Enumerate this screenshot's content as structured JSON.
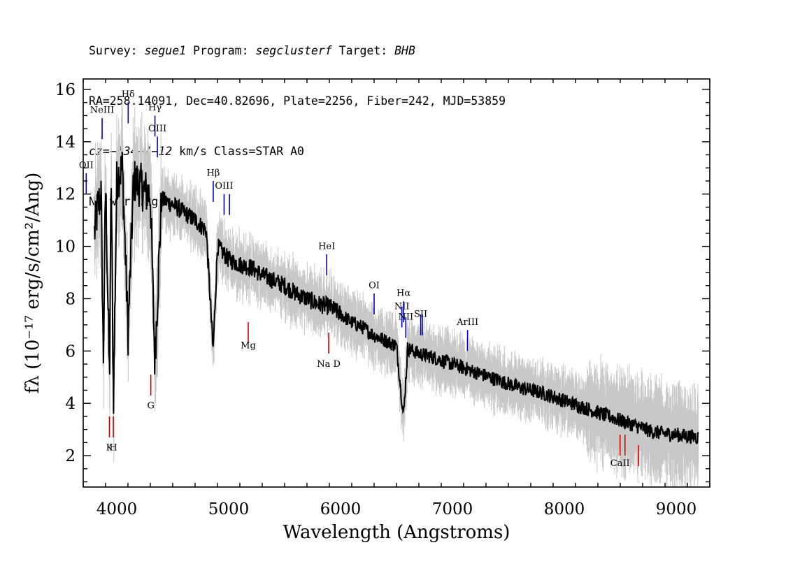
{
  "header": {
    "survey_label": "Survey: ",
    "survey": "segue1",
    "program_label": " Program: ",
    "program": "segclusterf",
    "target_label": " Target: ",
    "target": "BHB",
    "coords": "RA=258.14091, Dec=40.82696, Plate=2256, Fiber=242, MJD=53859",
    "cz_prefix": "cz=",
    "cz": "−134+/−12",
    "cz_suffix": " km/s Class=STAR A0",
    "warnings": "No warnings."
  },
  "chart_data": {
    "type": "line",
    "xlabel": "Wavelength (Angstroms)",
    "ylabel": "fλ (10⁻¹⁷ erg/s/cm²/Ang)",
    "xlim": [
      3700,
      9300
    ],
    "ylim": [
      0.8,
      16.4
    ],
    "x_ticks": [
      4000,
      5000,
      6000,
      7000,
      8000,
      9000
    ],
    "y_ticks": [
      2,
      4,
      6,
      8,
      10,
      12,
      14,
      16
    ],
    "grid": false,
    "colors": {
      "spectrum": "#000000",
      "noise": "#c8c8c8",
      "emission": "#0000cc",
      "absorption": "#cc0000"
    },
    "series": [
      {
        "x": [
          3800,
          3830,
          3860,
          3880,
          3900,
          3935,
          3950,
          3970,
          4000,
          4050,
          4101,
          4150,
          4200,
          4250,
          4300,
          4340,
          4400,
          4500,
          4600,
          4700,
          4800,
          4861,
          4900,
          5000,
          5100,
          5200,
          5300,
          5400,
          5500,
          5600,
          5700,
          5800,
          5900,
          6000,
          6100,
          6200,
          6300,
          6400,
          6500,
          6563,
          6600,
          6700,
          6800,
          7000,
          7200,
          7400,
          7600,
          7800,
          8000,
          8200,
          8400,
          8600,
          8800,
          9000,
          9200
        ],
        "y": [
          10.5,
          11.5,
          12.0,
          5.6,
          12.5,
          4.8,
          12.8,
          3.9,
          12.6,
          13.0,
          6.7,
          12.5,
          12.4,
          12.1,
          12.0,
          5.6,
          11.8,
          11.6,
          11.3,
          11.0,
          10.6,
          6.0,
          10.0,
          9.5,
          9.3,
          9.2,
          8.9,
          8.7,
          8.5,
          8.2,
          8.0,
          7.8,
          7.7,
          7.4,
          7.1,
          6.9,
          6.6,
          6.4,
          6.2,
          3.5,
          6.1,
          5.9,
          5.8,
          5.5,
          5.2,
          4.9,
          4.6,
          4.4,
          4.1,
          3.8,
          3.5,
          3.2,
          2.9,
          2.8,
          2.7
        ]
      }
    ],
    "lines": [
      {
        "label": "OII",
        "wave": 3727,
        "kind": "emission",
        "y1": 12.0,
        "y2": 12.8,
        "ly": 13.0
      },
      {
        "label": "NeIII",
        "wave": 3869,
        "kind": "emission",
        "y1": 14.1,
        "y2": 14.9,
        "ly": 15.1
      },
      {
        "label": "Hδ",
        "wave": 4102,
        "kind": "emission",
        "y1": 14.7,
        "y2": 15.5,
        "ly": 15.7
      },
      {
        "label": "Hγ",
        "wave": 4341,
        "kind": "emission",
        "y1": 14.2,
        "y2": 15.0,
        "ly": 15.2
      },
      {
        "label": "OIII",
        "wave": 4363,
        "kind": "emission",
        "y1": 13.4,
        "y2": 14.2,
        "ly": 14.4
      },
      {
        "label": "Hβ",
        "wave": 4862,
        "kind": "emission",
        "y1": 11.7,
        "y2": 12.5,
        "ly": 12.7
      },
      {
        "label": "OIII",
        "wave": 4959,
        "kind": "emission",
        "y1": 11.2,
        "y2": 12.0,
        "ly": 12.2
      },
      {
        "label": "",
        "wave": 5007,
        "kind": "emission",
        "y1": 11.2,
        "y2": 12.0,
        "ly": 12.2
      },
      {
        "label": "HeI",
        "wave": 5876,
        "kind": "emission",
        "y1": 8.9,
        "y2": 9.7,
        "ly": 9.9
      },
      {
        "label": "OI",
        "wave": 6300,
        "kind": "emission",
        "y1": 7.4,
        "y2": 8.2,
        "ly": 8.4
      },
      {
        "label": "NII",
        "wave": 6548,
        "kind": "emission",
        "y1": 6.9,
        "y2": 7.7,
        "ly": 7.6
      },
      {
        "label": "Hα",
        "wave": 6563,
        "kind": "emission",
        "y1": 7.1,
        "y2": 7.9,
        "ly": 8.1
      },
      {
        "label": "NII",
        "wave": 6583,
        "kind": "emission",
        "y1": 6.5,
        "y2": 7.3,
        "ly": 7.2
      },
      {
        "label": "SII",
        "wave": 6716,
        "kind": "emission",
        "y1": 6.6,
        "y2": 7.4,
        "ly": 7.3
      },
      {
        "label": "",
        "wave": 6731,
        "kind": "emission",
        "y1": 6.6,
        "y2": 7.4,
        "ly": 7.6
      },
      {
        "label": "ArIII",
        "wave": 7135,
        "kind": "emission",
        "y1": 6.0,
        "y2": 6.8,
        "ly": 7.0
      },
      {
        "label": "Mg",
        "wave": 5175,
        "kind": "absorption",
        "y1": 7.1,
        "y2": 6.3,
        "ly": 6.1
      },
      {
        "label": "Na D",
        "wave": 5894,
        "kind": "absorption",
        "y1": 6.7,
        "y2": 5.9,
        "ly": 5.4
      },
      {
        "label": "G",
        "wave": 4304,
        "kind": "absorption",
        "y1": 5.1,
        "y2": 4.3,
        "ly": 3.8
      },
      {
        "label": "K",
        "wave": 3934,
        "kind": "absorption",
        "y1": 3.5,
        "y2": 2.7,
        "ly": 2.2
      },
      {
        "label": "H",
        "wave": 3969,
        "kind": "absorption",
        "y1": 3.5,
        "y2": 2.7,
        "ly": 2.2
      },
      {
        "label": "CaII",
        "wave": 8498,
        "kind": "absorption",
        "y1": 2.8,
        "y2": 2.0,
        "ly": 1.6
      },
      {
        "label": "",
        "wave": 8542,
        "kind": "absorption",
        "y1": 2.8,
        "y2": 2.0,
        "ly": 1.6
      },
      {
        "label": "",
        "wave": 8662,
        "kind": "absorption",
        "y1": 2.4,
        "y2": 1.6,
        "ly": 1.6
      }
    ]
  }
}
